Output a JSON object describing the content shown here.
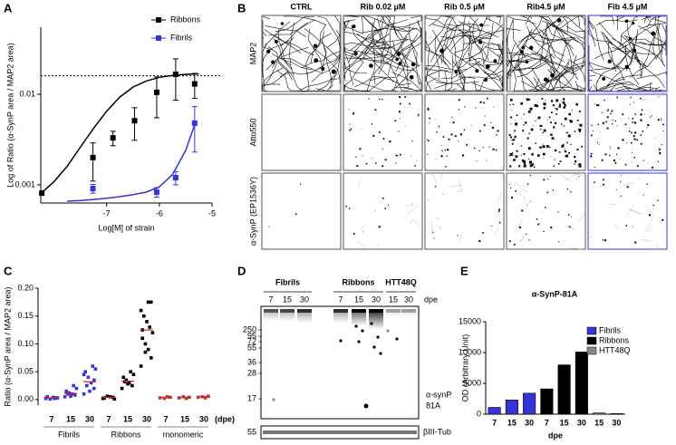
{
  "chart_data": [
    {
      "panel_label": "A",
      "type": "scatter",
      "log_y": true,
      "xlabel": "Log[M] of strain",
      "ylabel": "Log of Ratio (α-SynP area / MAP2 area)",
      "xlim": [
        -8.25,
        -5
      ],
      "xticks": [
        -7,
        -6,
        -5
      ],
      "ylim": [
        0.00063,
        0.055
      ],
      "yticks": [
        0.001,
        0.01
      ],
      "reference_line": 0.016,
      "legend": "upper right",
      "series": [
        {
          "name": "Ribbons",
          "color": "#000000",
          "x": [
            -8.23,
            -7.26,
            -6.88,
            -6.47,
            -6.05,
            -5.69,
            -5.33
          ],
          "values": [
            0.00081,
            0.002,
            0.0033,
            0.0051,
            0.0105,
            0.0166,
            0.013
          ],
          "errors": [
            0,
            0.0009,
            0.0006,
            0.002,
            0.005,
            0.008,
            0.004
          ],
          "fit": {
            "x": [
              -8.25,
              -8,
              -7.75,
              -7.5,
              -7.25,
              -7,
              -6.75,
              -6.5,
              -6.25,
              -6,
              -5.75,
              -5.5,
              -5.25
            ],
            "values": [
              0.0008,
              0.00108,
              0.0016,
              0.0026,
              0.0042,
              0.0065,
              0.0093,
              0.012,
              0.014,
              0.0154,
              0.0161,
              0.0166,
              0.0168
            ]
          }
        },
        {
          "name": "Fibrils",
          "color": "#3535d6",
          "x": [
            -7.26,
            -6.05,
            -5.69,
            -5.33
          ],
          "values": [
            0.00091,
            0.00083,
            0.0012,
            0.0048
          ],
          "errors": [
            0.0001,
            0.0001,
            0.0002,
            0.0025
          ],
          "fit": {
            "x": [
              -7.75,
              -7.5,
              -7.25,
              -7,
              -6.75,
              -6.5,
              -6.25,
              -6,
              -5.75,
              -5.5,
              -5.33
            ],
            "values": [
              0.00066,
              0.00067,
              0.00069,
              0.00071,
              0.00074,
              0.00078,
              0.00083,
              0.00095,
              0.0013,
              0.0024,
              0.0046
            ]
          }
        }
      ]
    },
    {
      "panel_label": "C",
      "type": "strip",
      "ylabel": "Ratio (α-SynP area / MAP2 area)",
      "ylim": [
        -0.01,
        0.2
      ],
      "yticks": [
        {
          "value": 0,
          "label": "0.00"
        },
        {
          "value": 0.05,
          "label": "0.05"
        },
        {
          "value": 0.1,
          "label": "0.10"
        },
        {
          "value": 0.15,
          "label": "0.15"
        },
        {
          "value": 0.2,
          "label": "0.20"
        }
      ],
      "x_unit": "(dpe)",
      "mean_color": "#d62020",
      "groups": [
        {
          "name": "Fibrils",
          "color": "#3535d6",
          "point_color": "#3535d6",
          "categories": [
            "7",
            "15",
            "30"
          ],
          "points": [
            [
              0.002,
              0.003,
              0.004,
              0.001,
              0.005,
              0.003,
              0.002
            ],
            [
              0.005,
              0.008,
              0.01,
              0.012,
              0.015,
              0.02,
              0.025,
              0.006,
              0.01
            ],
            [
              0.01,
              0.02,
              0.03,
              0.04,
              0.05,
              0.055,
              0.06,
              0.015,
              0.025,
              0.045,
              0.035
            ]
          ],
          "means": [
            0.003,
            0.011,
            0.032
          ]
        },
        {
          "name": "Ribbons",
          "color": "#000000",
          "point_color": "#000000",
          "categories": [
            "7",
            "15",
            "30"
          ],
          "points": [
            [
              0.002,
              0.004,
              0.005,
              0.006,
              0.003,
              0.001
            ],
            [
              0.02,
              0.025,
              0.03,
              0.035,
              0.04,
              0.045,
              0.05,
              0.028,
              0.032
            ],
            [
              0.06,
              0.075,
              0.09,
              0.1,
              0.11,
              0.12,
              0.13,
              0.14,
              0.15,
              0.16,
              0.175,
              0.175,
              0.085,
              0.125
            ]
          ],
          "means": [
            0.004,
            0.033,
            0.125
          ]
        },
        {
          "name": "monomeric",
          "color": "#999999",
          "point_color": "#b04040",
          "categories": [
            "7",
            "15",
            "30"
          ],
          "points": [
            [
              0.003,
              0.004,
              0.005,
              0.002
            ],
            [
              0.003,
              0.004,
              0.002,
              0.005
            ],
            [
              0.004,
              0.006,
              0.003,
              0.005
            ]
          ],
          "means": [
            0.004,
            0.004,
            0.005
          ]
        }
      ]
    },
    {
      "panel_label": "E",
      "type": "bar",
      "title": "α-SynP-81A",
      "xlabel": "dpe",
      "ylabel": "OD (Arbitrary Unit)",
      "ylim": [
        0,
        15000
      ],
      "yticks": [
        0,
        5000,
        10000,
        15000
      ],
      "categories": [
        "7",
        "15",
        "30",
        "7",
        "15",
        "30",
        "15",
        "30"
      ],
      "values": [
        1100,
        2300,
        3400,
        4100,
        8000,
        10100,
        200,
        100
      ],
      "colors": [
        "#3535d6",
        "#3535d6",
        "#3535d6",
        "#000000",
        "#000000",
        "#000000",
        "#888888",
        "#888888"
      ],
      "legend_entries": [
        {
          "name": "Fibrils",
          "color": "#3535d6"
        },
        {
          "name": "Ribbons",
          "color": "#000000"
        },
        {
          "name": "HTT48Q",
          "color": "#888888"
        }
      ]
    }
  ],
  "panel_b": {
    "panel_label": "B",
    "columns": [
      {
        "label": "CTRL",
        "color": "#999999"
      },
      {
        "label": "Rib 0.02 µM",
        "color": "#000000"
      },
      {
        "label": "Rib 0.5 µM",
        "color": "#000000"
      },
      {
        "label": "Rib4.5 µM",
        "color": "#000000"
      },
      {
        "label": "Fib 4.5 µM",
        "color": "#3535d6"
      }
    ],
    "rows": [
      "MAP2",
      "Atto550",
      "α-SynP (EP1536Y)"
    ]
  },
  "panel_d": {
    "panel_label": "D",
    "groups": [
      {
        "name": "Fibrils",
        "color": "#3535d6",
        "lanes": [
          "7",
          "15",
          "30"
        ]
      },
      {
        "name": "Ribbons",
        "color": "#000000",
        "lanes": [
          "7",
          "15",
          "30"
        ]
      },
      {
        "name": "HTT48Q",
        "color": "#999999",
        "lanes": [
          "15",
          "30"
        ]
      }
    ],
    "lane_unit": "dpe",
    "markers": [
      "250",
      "95",
      "72",
      "55",
      "36",
      "28",
      "17"
    ],
    "antibody": [
      "α-synP",
      "81A"
    ],
    "loading": {
      "marker": "55",
      "label": "βIII-Tub"
    }
  }
}
